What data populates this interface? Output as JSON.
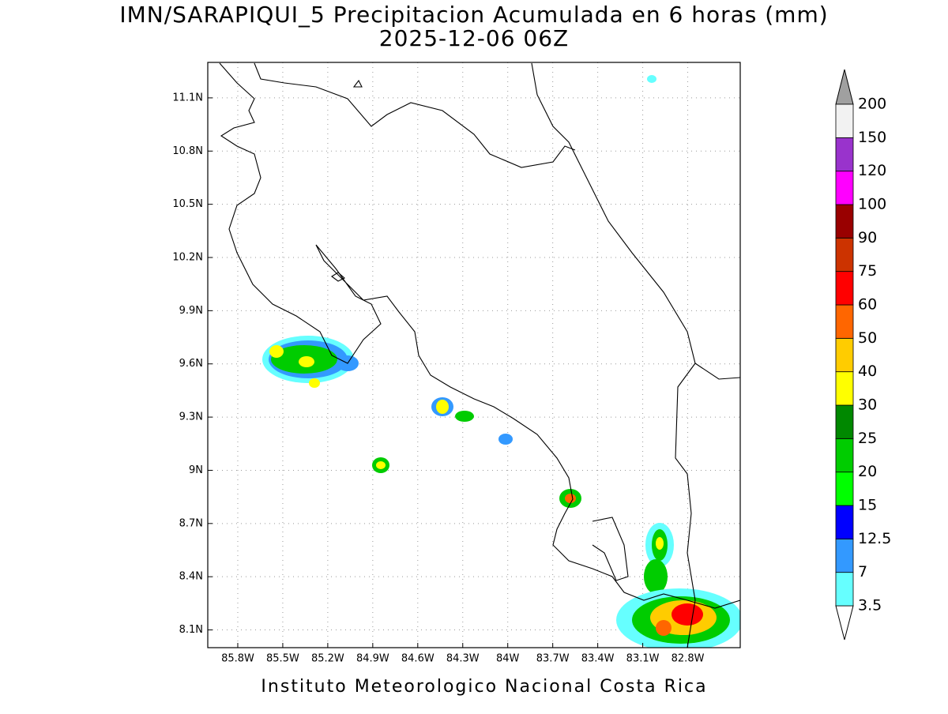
{
  "chart_data": {
    "type": "map",
    "title": "IMN/SARAPIQUI_5 Precipitacion Acumulada en 6 horas (mm)",
    "subtitle": "2025-12-06 06Z",
    "footer": "Instituto Meteorologico Nacional Costa Rica",
    "xlim": [
      -86.0,
      -82.45
    ],
    "ylim": [
      8.0,
      11.3
    ],
    "xticks": [
      {
        "value": -85.8,
        "label": "85.8W"
      },
      {
        "value": -85.5,
        "label": "85.5W"
      },
      {
        "value": -85.2,
        "label": "85.2W"
      },
      {
        "value": -84.9,
        "label": "84.9W"
      },
      {
        "value": -84.6,
        "label": "84.6W"
      },
      {
        "value": -84.3,
        "label": "84.3W"
      },
      {
        "value": -84.0,
        "label": "84W"
      },
      {
        "value": -83.7,
        "label": "83.7W"
      },
      {
        "value": -83.4,
        "label": "83.4W"
      },
      {
        "value": -83.1,
        "label": "83.1W"
      },
      {
        "value": -82.8,
        "label": "82.8W"
      }
    ],
    "yticks": [
      {
        "value": 8.1,
        "label": "8.1N"
      },
      {
        "value": 8.4,
        "label": "8.4N"
      },
      {
        "value": 8.7,
        "label": "8.7N"
      },
      {
        "value": 9.0,
        "label": "9N"
      },
      {
        "value": 9.3,
        "label": "9.3N"
      },
      {
        "value": 9.6,
        "label": "9.6N"
      },
      {
        "value": 9.9,
        "label": "9.9N"
      },
      {
        "value": 10.2,
        "label": "10.2N"
      },
      {
        "value": 10.5,
        "label": "10.5N"
      },
      {
        "value": 10.8,
        "label": "10.8N"
      },
      {
        "value": 11.1,
        "label": "11.1N"
      }
    ],
    "grid": true,
    "colorbar": {
      "levels": [
        3.5,
        7,
        12.5,
        15,
        20,
        25,
        30,
        40,
        50,
        60,
        75,
        90,
        100,
        120,
        150,
        200
      ],
      "colors": [
        "#66ffff",
        "#3399ff",
        "#0000ff",
        "#00ff00",
        "#00cc00",
        "#008800",
        "#ffff00",
        "#ffcc00",
        "#ff6600",
        "#ff0000",
        "#cc3300",
        "#990000",
        "#ff00ff",
        "#9933cc",
        "#f2f2f2"
      ],
      "under_color": "#ffffff",
      "over_color": "#a0a0a0"
    }
  }
}
